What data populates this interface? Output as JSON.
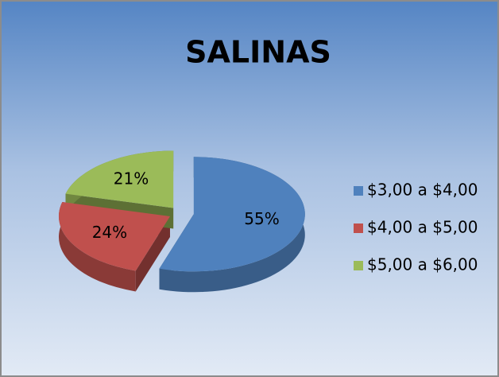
{
  "chart_data": {
    "type": "pie",
    "title": "SALINAS",
    "categories": [
      "$3,00 a $4,00",
      "$4,00 a $5,00",
      "$5,00 a $6,00"
    ],
    "values": [
      55,
      24,
      21
    ],
    "value_labels": [
      "55%",
      "24%",
      "21%"
    ],
    "colors": [
      "#4f81bd",
      "#c0504d",
      "#9bbb59"
    ],
    "legend": "right"
  }
}
